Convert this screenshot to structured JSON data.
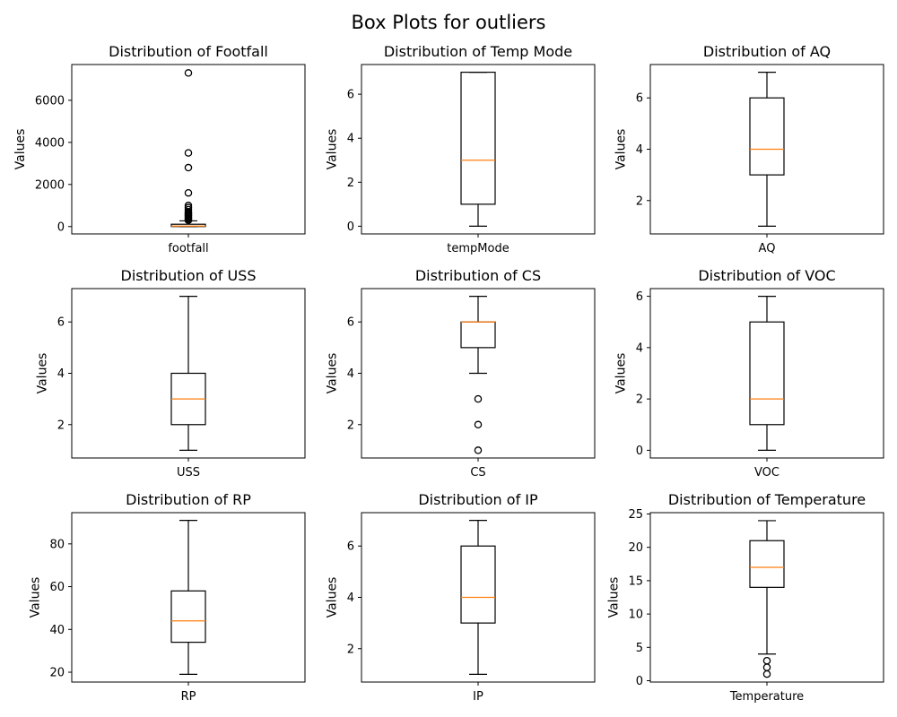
{
  "figure": {
    "title": "Box Plots for outliers"
  },
  "colors": {
    "box": "#000000",
    "median": "#ff7f0e",
    "flier": "#000000"
  },
  "chart_data": [
    {
      "type": "box",
      "title": "Distribution of Footfall",
      "ylabel": "Values",
      "category": "footfall",
      "ylim": [
        -350,
        7700
      ],
      "yticks": [
        0,
        2000,
        4000,
        6000
      ],
      "box": {
        "whislo": 0,
        "q1": 2,
        "med": 22,
        "q3": 110,
        "whishi": 270
      },
      "fliers": [
        7300,
        3500,
        2800,
        1600,
        1000,
        900,
        800,
        700,
        650,
        600,
        550,
        500,
        450,
        400,
        350,
        300
      ]
    },
    {
      "type": "box",
      "title": "Distribution of Temp Mode",
      "ylabel": "Values",
      "category": "tempMode",
      "ylim": [
        -0.35,
        7.35
      ],
      "yticks": [
        0,
        2,
        4,
        6
      ],
      "box": {
        "whislo": 0,
        "q1": 1,
        "med": 3,
        "q3": 7,
        "whishi": 7
      },
      "fliers": []
    },
    {
      "type": "box",
      "title": "Distribution of AQ",
      "ylabel": "Values",
      "category": "AQ",
      "ylim": [
        0.7,
        7.3
      ],
      "yticks": [
        2,
        4,
        6
      ],
      "box": {
        "whislo": 1,
        "q1": 3,
        "med": 4,
        "q3": 6,
        "whishi": 7
      },
      "fliers": []
    },
    {
      "type": "box",
      "title": "Distribution of USS",
      "ylabel": "Values",
      "category": "USS",
      "ylim": [
        0.7,
        7.3
      ],
      "yticks": [
        2,
        4,
        6
      ],
      "box": {
        "whislo": 1,
        "q1": 2,
        "med": 3,
        "q3": 4,
        "whishi": 7
      },
      "fliers": []
    },
    {
      "type": "box",
      "title": "Distribution of CS",
      "ylabel": "Values",
      "category": "CS",
      "ylim": [
        0.7,
        7.3
      ],
      "yticks": [
        2,
        4,
        6
      ],
      "box": {
        "whislo": 4,
        "q1": 5,
        "med": 6,
        "q3": 6,
        "whishi": 7
      },
      "fliers": [
        3,
        2,
        1
      ]
    },
    {
      "type": "box",
      "title": "Distribution of VOC",
      "ylabel": "Values",
      "category": "VOC",
      "ylim": [
        -0.3,
        6.3
      ],
      "yticks": [
        0,
        2,
        4,
        6
      ],
      "box": {
        "whislo": 0,
        "q1": 1,
        "med": 2,
        "q3": 5,
        "whishi": 6
      },
      "fliers": []
    },
    {
      "type": "box",
      "title": "Distribution of RP",
      "ylabel": "Values",
      "category": "RP",
      "ylim": [
        15.4,
        94.6
      ],
      "yticks": [
        20,
        40,
        60,
        80
      ],
      "box": {
        "whislo": 19,
        "q1": 34,
        "med": 44,
        "q3": 58,
        "whishi": 91
      },
      "fliers": []
    },
    {
      "type": "box",
      "title": "Distribution of IP",
      "ylabel": "Values",
      "category": "IP",
      "ylim": [
        0.7,
        7.3
      ],
      "yticks": [
        2,
        4,
        6
      ],
      "box": {
        "whislo": 1,
        "q1": 3,
        "med": 4,
        "q3": 6,
        "whishi": 7
      },
      "fliers": []
    },
    {
      "type": "box",
      "title": "Distribution of Temperature",
      "ylabel": "Values",
      "category": "Temperature",
      "ylim": [
        -0.2,
        25.2
      ],
      "yticks": [
        0,
        5,
        10,
        15,
        20,
        25
      ],
      "box": {
        "whislo": 4,
        "q1": 14,
        "med": 17,
        "q3": 21,
        "whishi": 24
      },
      "fliers": [
        3,
        2,
        1
      ]
    }
  ]
}
